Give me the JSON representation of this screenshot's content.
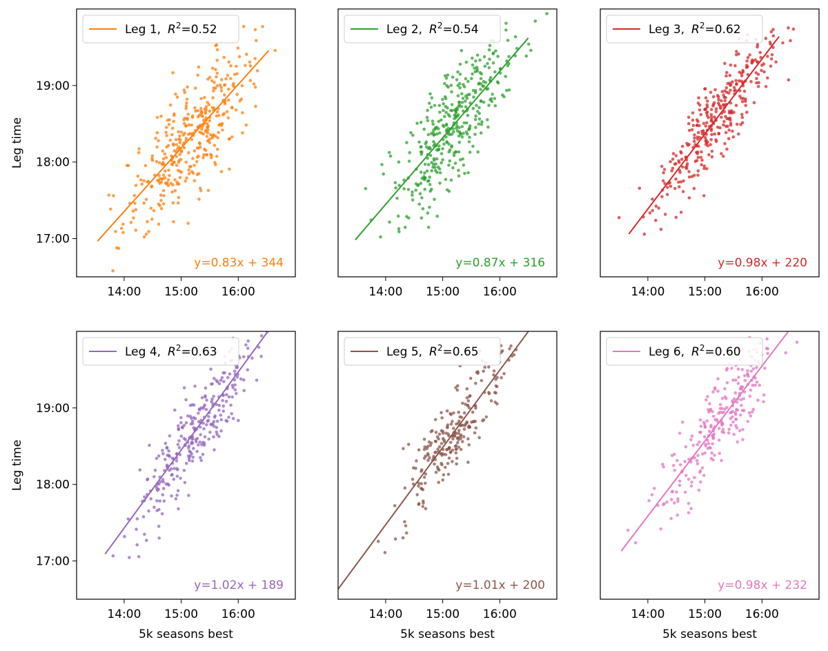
{
  "chart_data": [
    {
      "type": "scatter",
      "leg": 1,
      "legend": "Leg 1,",
      "r2_label": "R",
      "r2_sup": "2",
      "r2_value": "=0.52",
      "equation": "y=0.83x + 344",
      "color": "#ff7f0e",
      "slope": 0.83,
      "intercept": 344,
      "fit_x": [
        812,
        992
      ],
      "x_center": 910,
      "x_spread": 34,
      "resid_sd": 22,
      "n_points": 380,
      "xlim": [
        790,
        1020
      ],
      "ylim": [
        990,
        1200
      ],
      "xticks": [
        840,
        900,
        960
      ],
      "xtick_labels": [
        "14:00",
        "15:00",
        "16:00"
      ],
      "yticks": [
        1020,
        1080,
        1140
      ],
      "ytick_labels": [
        "17:00",
        "18:00",
        "19:00"
      ],
      "xlabel": "",
      "ylabel": "Leg time"
    },
    {
      "type": "scatter",
      "leg": 2,
      "legend": "Leg 2,",
      "r2_label": "R",
      "r2_sup": "2",
      "r2_value": "=0.54",
      "equation": "y=0.87x + 316",
      "color": "#2ca02c",
      "slope": 0.87,
      "intercept": 316,
      "fit_x": [
        808,
        990
      ],
      "x_center": 915,
      "x_spread": 34,
      "resid_sd": 22,
      "n_points": 380,
      "xlim": [
        790,
        1020
      ],
      "ylim": [
        990,
        1200
      ],
      "xticks": [
        840,
        900,
        960
      ],
      "xtick_labels": [
        "14:00",
        "15:00",
        "16:00"
      ],
      "yticks": [
        1020,
        1080,
        1140
      ],
      "ytick_labels": [
        "17:00",
        "18:00",
        "19:00"
      ],
      "xlabel": "",
      "ylabel": ""
    },
    {
      "type": "scatter",
      "leg": 3,
      "legend": "Leg 3,",
      "r2_label": "R",
      "r2_sup": "2",
      "r2_value": "=0.62",
      "equation": "y=0.98x + 220",
      "color": "#d62728",
      "slope": 0.98,
      "intercept": 220,
      "fit_x": [
        820,
        978
      ],
      "x_center": 912,
      "x_spread": 30,
      "resid_sd": 17,
      "n_points": 330,
      "xlim": [
        790,
        1020
      ],
      "ylim": [
        990,
        1200
      ],
      "xticks": [
        840,
        900,
        960
      ],
      "xtick_labels": [
        "14:00",
        "15:00",
        "16:00"
      ],
      "yticks": [
        1020,
        1080,
        1140
      ],
      "ytick_labels": [
        "17:00",
        "18:00",
        "19:00"
      ],
      "xlabel": "",
      "ylabel": ""
    },
    {
      "type": "scatter",
      "leg": 4,
      "legend": "Leg 4,",
      "r2_label": "R",
      "r2_sup": "2",
      "r2_value": "=0.63",
      "equation": "y=1.02x + 189",
      "color": "#9467bd",
      "slope": 1.02,
      "intercept": 189,
      "fit_x": [
        820,
        990
      ],
      "x_center": 916,
      "x_spread": 30,
      "resid_sd": 17,
      "n_points": 290,
      "xlim": [
        790,
        1020
      ],
      "ylim": [
        990,
        1200
      ],
      "xticks": [
        840,
        900,
        960
      ],
      "xtick_labels": [
        "14:00",
        "15:00",
        "16:00"
      ],
      "yticks": [
        1020,
        1080,
        1140
      ],
      "ytick_labels": [
        "17:00",
        "18:00",
        "19:00"
      ],
      "xlabel": "5k seasons best",
      "ylabel": "Leg time"
    },
    {
      "type": "scatter",
      "leg": 5,
      "legend": "Leg 5,",
      "r2_label": "R",
      "r2_sup": "2",
      "r2_value": "=0.65",
      "equation": "y=1.01x + 200",
      "color": "#8c564b",
      "slope": 1.01,
      "intercept": 200,
      "fit_x": [
        790,
        990
      ],
      "x_center": 912,
      "x_spread": 30,
      "resid_sd": 16,
      "n_points": 240,
      "xlim": [
        790,
        1020
      ],
      "ylim": [
        990,
        1200
      ],
      "xticks": [
        840,
        900,
        960
      ],
      "xtick_labels": [
        "14:00",
        "15:00",
        "16:00"
      ],
      "yticks": [
        1020,
        1080,
        1140
      ],
      "ytick_labels": [
        "17:00",
        "18:00",
        "19:00"
      ],
      "xlabel": "5k seasons best",
      "ylabel": ""
    },
    {
      "type": "scatter",
      "leg": 6,
      "legend": "Leg 6,",
      "r2_label": "R",
      "r2_sup": "2",
      "r2_value": "=0.60",
      "equation": "y=0.98x + 232",
      "color": "#e377c2",
      "slope": 0.98,
      "intercept": 232,
      "fit_x": [
        812,
        990
      ],
      "x_center": 915,
      "x_spread": 30,
      "resid_sd": 18,
      "n_points": 250,
      "xlim": [
        790,
        1020
      ],
      "ylim": [
        990,
        1200
      ],
      "xticks": [
        840,
        900,
        960
      ],
      "xtick_labels": [
        "14:00",
        "15:00",
        "16:00"
      ],
      "yticks": [
        1020,
        1080,
        1140
      ],
      "ytick_labels": [
        "17:00",
        "18:00",
        "19:00"
      ],
      "xlabel": "5k seasons best",
      "ylabel": ""
    }
  ]
}
